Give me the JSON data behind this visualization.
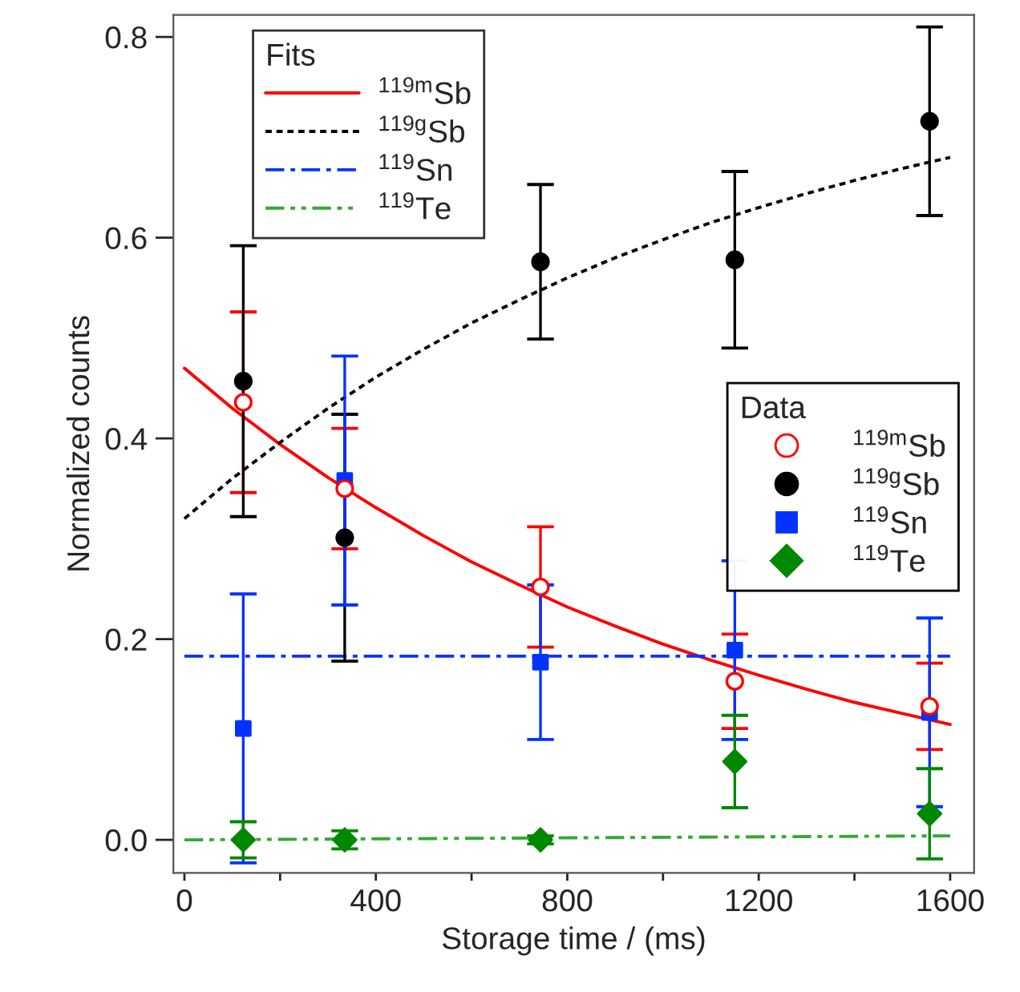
{
  "chart_data": {
    "type": "scatter",
    "xlabel": "Storage time / (ms)",
    "ylabel": "Normalized counts",
    "legend_title": [
      "Fits",
      "Data"
    ],
    "legend": [
      "top left",
      "right"
    ],
    "xlim": [
      -23,
      1650
    ],
    "ylim": [
      -0.033,
      0.822
    ],
    "xticks": [
      0,
      {
        "value": 200,
        "label": null
      },
      400,
      {
        "value": 600,
        "label": null
      },
      800,
      {
        "value": 1000,
        "label": null
      },
      1200,
      {
        "value": 1400,
        "label": null
      },
      1600
    ],
    "yticks": [
      {
        "value": 0,
        "label": "0.0"
      },
      0.2,
      0.4,
      0.6,
      0.8
    ],
    "grid": false,
    "series": [
      {
        "type": "line",
        "name": "$^{119m}$Sb",
        "color": "#ff0000",
        "line_style": "solid",
        "marker": "none",
        "x": [
          0,
          100,
          200,
          300,
          400,
          500,
          600,
          700,
          800,
          900,
          1000,
          1100,
          1200,
          1300,
          1400,
          1500,
          1600
        ],
        "values": [
          0.47,
          0.43,
          0.394,
          0.361,
          0.331,
          0.303,
          0.277,
          0.254,
          0.232,
          0.213,
          0.195,
          0.179,
          0.164,
          0.15,
          0.137,
          0.126,
          0.115
        ]
      },
      {
        "type": "line",
        "name": "$^{119g}$Sb",
        "color": "#000000",
        "line_style": "dotted",
        "marker": "none",
        "x": [
          0,
          100,
          200,
          300,
          400,
          500,
          600,
          700,
          800,
          900,
          1000,
          1100,
          1200,
          1300,
          1400,
          1500,
          1600
        ],
        "values": [
          0.32,
          0.36,
          0.396,
          0.43,
          0.461,
          0.489,
          0.515,
          0.538,
          0.56,
          0.58,
          0.598,
          0.615,
          0.63,
          0.644,
          0.657,
          0.669,
          0.68
        ]
      },
      {
        "type": "line",
        "name": "$^{119}$Sn",
        "color": "#0033ff",
        "line_style": "dashdot",
        "marker": "none",
        "x": [
          0,
          1600
        ],
        "values": [
          0.183,
          0.183
        ]
      },
      {
        "type": "line",
        "name": "$^{119}$Te",
        "color": "#33aa33",
        "line_style": "dashdotdot",
        "marker": "none",
        "x": [
          0,
          1600
        ],
        "values": [
          0.0,
          0.004
        ]
      },
      {
        "name": "$^{119m}$Sb",
        "color": "#ff0000",
        "marker": "open circle",
        "x": [
          123,
          335,
          744,
          1150,
          1557
        ],
        "values": [
          0.436,
          0.35,
          0.252,
          0.158,
          0.133
        ],
        "errors": [
          0.09,
          0.06,
          0.06,
          0.047,
          0.043
        ]
      },
      {
        "name": "$^{119g}$Sb",
        "color": "#000000",
        "marker": "circle",
        "x": [
          123,
          335,
          744,
          1150,
          1557
        ],
        "values": [
          0.457,
          0.301,
          0.576,
          0.578,
          0.716
        ],
        "errors": [
          0.135,
          0.123,
          0.077,
          0.088,
          0.094
        ]
      },
      {
        "name": "$^{119}$Sn",
        "color": "#0033ff",
        "marker": "square",
        "x": [
          123,
          335,
          744,
          1150,
          1557
        ],
        "values": [
          0.111,
          0.358,
          0.177,
          0.189,
          0.127
        ],
        "errors": [
          0.134,
          0.124,
          0.077,
          0.089,
          0.094
        ]
      },
      {
        "name": "$^{119}$Te",
        "color": "#008800",
        "marker": "diamond",
        "x": [
          123,
          335,
          744,
          1150,
          1557
        ],
        "values": [
          0.0,
          0.0,
          0.0,
          0.078,
          0.026
        ],
        "errors": [
          0.018,
          0.009,
          0.004,
          0.046,
          0.045
        ]
      }
    ]
  }
}
